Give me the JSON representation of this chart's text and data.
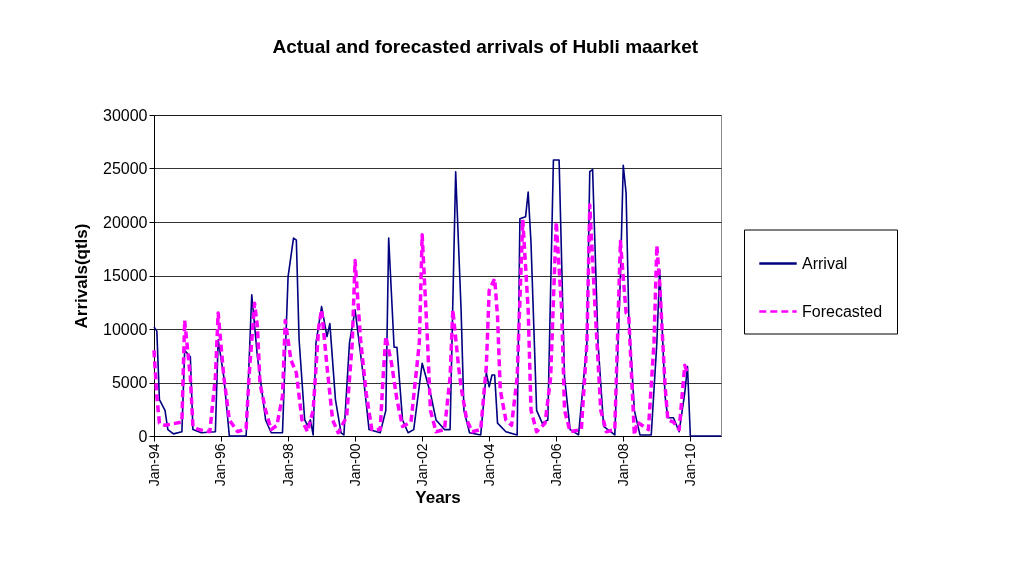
{
  "chart_data": {
    "type": "line",
    "title": "Actual and forecasted arrivals of Hubli maarket",
    "xlabel": "Years",
    "ylabel": "Arrivals(qtls)",
    "xlim": [
      "1994-01",
      "2010-12"
    ],
    "xticks": [
      {
        "value": "1994-01",
        "label": "Jan-94"
      },
      {
        "value": "1996-01",
        "label": "Jan-96"
      },
      {
        "value": "1998-01",
        "label": "Jan-98"
      },
      {
        "value": "2000-01",
        "label": "Jan-00"
      },
      {
        "value": "2002-01",
        "label": "Jan-02"
      },
      {
        "value": "2004-01",
        "label": "Jan-04"
      },
      {
        "value": "2006-01",
        "label": "Jan-06"
      },
      {
        "value": "2008-01",
        "label": "Jan-08"
      },
      {
        "value": "2010-01",
        "label": "Jan-10"
      }
    ],
    "ylim": [
      0,
      30000
    ],
    "yticks": [
      0,
      5000,
      10000,
      15000,
      20000,
      25000,
      30000
    ],
    "grid": "y",
    "legend": "right",
    "series": [
      {
        "name": "Arrival",
        "color": "#000080",
        "line_style": "solid",
        "x": [
          "1994-01",
          "1994-02",
          "1994-03",
          "1994-05",
          "1994-06",
          "1994-08",
          "1994-11",
          "1994-12",
          "1995-02",
          "1995-03",
          "1995-06",
          "1995-11",
          "1995-12",
          "1996-02",
          "1996-04",
          "1996-10",
          "1996-12",
          "1997-02",
          "1997-05",
          "1997-07",
          "1997-11",
          "1998-01",
          "1998-03",
          "1998-04",
          "1998-05",
          "1998-07",
          "1998-08",
          "1998-09",
          "1998-10",
          "1998-11",
          "1999-01",
          "1999-03",
          "1999-04",
          "1999-06",
          "1999-08",
          "1999-09",
          "1999-11",
          "2000-01",
          "2000-04",
          "2000-06",
          "2000-10",
          "2000-12",
          "2001-01",
          "2001-03",
          "2001-04",
          "2001-06",
          "2001-08",
          "2001-10",
          "2002-01",
          "2002-04",
          "2002-06",
          "2002-09",
          "2002-11",
          "2003-01",
          "2003-03",
          "2003-04",
          "2003-06",
          "2003-10",
          "2003-12",
          "2004-01",
          "2004-02",
          "2004-03",
          "2004-04",
          "2004-07",
          "2004-11",
          "2004-12",
          "2005-02",
          "2005-03",
          "2005-04",
          "2005-06",
          "2005-08",
          "2005-10",
          "2005-12",
          "2006-02",
          "2006-04",
          "2006-06",
          "2006-09",
          "2006-12",
          "2007-01",
          "2007-02",
          "2007-04",
          "2007-06",
          "2007-10",
          "2007-12",
          "2008-01",
          "2008-02",
          "2008-03",
          "2008-05",
          "2008-07",
          "2008-11",
          "2009-01",
          "2009-02",
          "2009-04",
          "2009-05",
          "2009-07",
          "2009-09",
          "2009-11",
          "2009-12",
          "2010-01",
          "2010-12"
        ],
        "values": [
          10200,
          9800,
          3400,
          2400,
          600,
          200,
          400,
          8000,
          7400,
          600,
          300,
          400,
          9000,
          5500,
          0,
          0,
          13200,
          7400,
          1500,
          300,
          300,
          14900,
          18500,
          18300,
          9000,
          1500,
          1000,
          1500,
          100,
          8700,
          12100,
          9300,
          10500,
          3400,
          300,
          100,
          8700,
          11800,
          5500,
          600,
          300,
          2400,
          18500,
          8300,
          8300,
          1500,
          300,
          600,
          6800,
          4000,
          1500,
          600,
          600,
          24700,
          11800,
          2400,
          300,
          100,
          5900,
          4600,
          5700,
          5700,
          1200,
          400,
          100,
          20300,
          20500,
          22800,
          18000,
          2400,
          1200,
          1500,
          25800,
          25800,
          5500,
          600,
          100,
          8700,
          24700,
          24900,
          8700,
          900,
          100,
          14900,
          25300,
          22700,
          11200,
          2400,
          100,
          100,
          8700,
          15500,
          3700,
          1700,
          1700,
          400,
          4000,
          6500,
          0,
          0
        ]
      },
      {
        "name": "Forecasted",
        "color": "#ff00ff",
        "line_style": "dashed",
        "x": [
          "1994-01",
          "1994-02",
          "1994-03",
          "1994-05",
          "1994-11",
          "1994-12",
          "1995-02",
          "1995-03",
          "1995-05",
          "1995-09",
          "1995-11",
          "1995-12",
          "1996-02",
          "1996-04",
          "1996-07",
          "1996-10",
          "1996-11",
          "1997-01",
          "1997-02",
          "1997-03",
          "1997-05",
          "1997-07",
          "1997-09",
          "1997-11",
          "1997-12",
          "1998-02",
          "1998-04",
          "1998-06",
          "1998-08",
          "1998-10",
          "1998-12",
          "1999-01",
          "1999-03",
          "1999-05",
          "1999-07",
          "1999-10",
          "1999-12",
          "2000-01",
          "2000-03",
          "2000-05",
          "2000-07",
          "2000-10",
          "2000-11",
          "2000-12",
          "2001-02",
          "2001-04",
          "2001-06",
          "2001-09",
          "2001-12",
          "2002-01",
          "2002-03",
          "2002-04",
          "2002-06",
          "2002-09",
          "2002-11",
          "2002-12",
          "2003-02",
          "2003-03",
          "2003-05",
          "2003-07",
          "2003-10",
          "2003-12",
          "2004-01",
          "2004-03",
          "2004-04",
          "2004-05",
          "2004-07",
          "2004-09",
          "2004-11",
          "2005-01",
          "2005-03",
          "2005-04",
          "2005-06",
          "2005-09",
          "2005-11",
          "2006-01",
          "2006-03",
          "2006-04",
          "2006-06",
          "2006-10",
          "2006-12",
          "2007-01",
          "2007-03",
          "2007-05",
          "2007-07",
          "2007-10",
          "2007-12",
          "2008-02",
          "2008-03",
          "2008-05",
          "2008-06",
          "2008-10",
          "2008-12",
          "2009-01",
          "2009-02",
          "2009-04",
          "2009-05",
          "2009-07",
          "2009-09",
          "2009-11",
          "2009-12"
        ],
        "values": [
          8000,
          3700,
          1200,
          1000,
          1300,
          10800,
          5500,
          900,
          600,
          400,
          5500,
          11500,
          5500,
          1500,
          400,
          700,
          5500,
          12400,
          10200,
          4900,
          2400,
          600,
          1000,
          3700,
          10800,
          7100,
          5900,
          1500,
          400,
          2400,
          10200,
          11800,
          6500,
          1500,
          300,
          1800,
          8700,
          16400,
          9000,
          4000,
          600,
          600,
          5500,
          9300,
          6800,
          3400,
          900,
          1300,
          8700,
          18800,
          8700,
          2400,
          400,
          600,
          5500,
          11800,
          6500,
          4600,
          1500,
          400,
          600,
          6500,
          13600,
          14700,
          11200,
          4300,
          1500,
          1000,
          5500,
          20200,
          11800,
          2400,
          400,
          1200,
          5500,
          20000,
          11800,
          2400,
          400,
          600,
          8700,
          21600,
          11800,
          2400,
          400,
          600,
          18200,
          11500,
          11200,
          100,
          1300,
          600,
          8700,
          17800,
          14300,
          4600,
          1500,
          1300,
          600,
          6600,
          5900
        ]
      }
    ]
  }
}
